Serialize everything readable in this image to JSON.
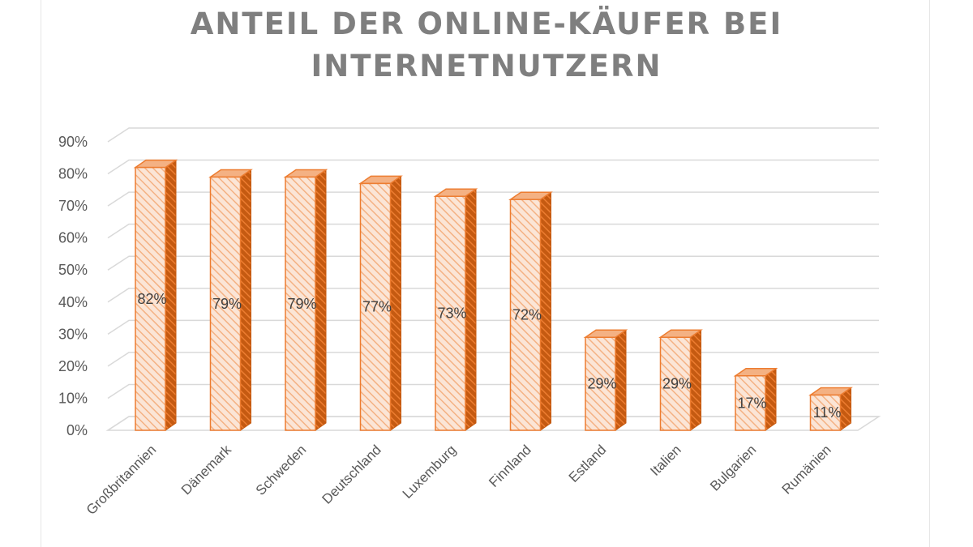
{
  "chart_data": {
    "type": "bar",
    "title": "ANTEIL DER ONLINE-KÄUFER BEI INTERNETNUTZERN",
    "xlabel": "",
    "ylabel": "",
    "categories": [
      "Großbritannien",
      "Dänemark",
      "Schweden",
      "Deutschland",
      "Luxemburg",
      "Finnland",
      "Estland",
      "Italien",
      "Bulgarien",
      "Rumänien"
    ],
    "values": [
      82,
      79,
      79,
      77,
      73,
      72,
      29,
      29,
      17,
      11
    ],
    "data_labels": [
      "82%",
      "79%",
      "79%",
      "77%",
      "73%",
      "72%",
      "29%",
      "29%",
      "17%",
      "11%"
    ],
    "yticks": [
      "0%",
      "10%",
      "20%",
      "30%",
      "40%",
      "50%",
      "60%",
      "70%",
      "80%",
      "90%"
    ],
    "ylim": [
      0,
      90
    ],
    "grid": true,
    "legend": "none",
    "style": "3d-column-hatched",
    "colors": {
      "bar_fill": "#fbe5d6",
      "bar_hatch": "#f4b183",
      "bar_edge": "#ed7d31",
      "bar_side": "#c55a11",
      "bar_top": "#f4b183",
      "grid": "#d9d9d9",
      "text": "#595959",
      "title": "#7f7f7f"
    }
  }
}
